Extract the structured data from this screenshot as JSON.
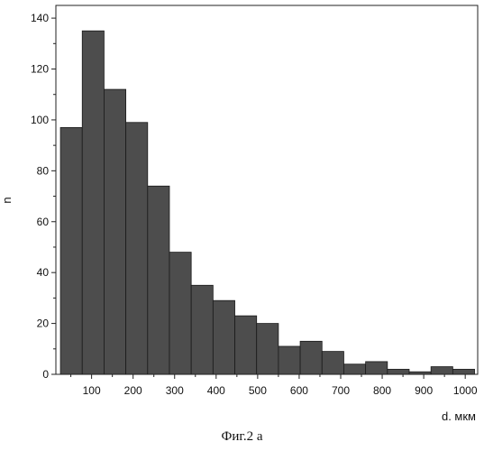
{
  "chart_data": {
    "type": "bar",
    "title": "",
    "xlabel": "d. мкм",
    "ylabel": "n",
    "xlim": [
      14,
      1030
    ],
    "ylim": [
      0,
      145
    ],
    "xticks": [
      100,
      200,
      300,
      400,
      500,
      600,
      700,
      800,
      900,
      1000
    ],
    "yticks": [
      0,
      20,
      40,
      60,
      80,
      100,
      120,
      140
    ],
    "bin_width": 52.5,
    "bins": [
      {
        "x0": 25,
        "x1": 77.5,
        "value": 97
      },
      {
        "x0": 77.5,
        "x1": 130,
        "value": 135
      },
      {
        "x0": 130,
        "x1": 182.5,
        "value": 112
      },
      {
        "x0": 182.5,
        "x1": 235,
        "value": 99
      },
      {
        "x0": 235,
        "x1": 287.5,
        "value": 74
      },
      {
        "x0": 287.5,
        "x1": 340,
        "value": 48
      },
      {
        "x0": 340,
        "x1": 392.5,
        "value": 35
      },
      {
        "x0": 392.5,
        "x1": 445,
        "value": 29
      },
      {
        "x0": 445,
        "x1": 497.5,
        "value": 23
      },
      {
        "x0": 497.5,
        "x1": 550,
        "value": 20
      },
      {
        "x0": 550,
        "x1": 602.5,
        "value": 11
      },
      {
        "x0": 602.5,
        "x1": 655,
        "value": 13
      },
      {
        "x0": 655,
        "x1": 707.5,
        "value": 9
      },
      {
        "x0": 707.5,
        "x1": 760,
        "value": 4
      },
      {
        "x0": 760,
        "x1": 812.5,
        "value": 5
      },
      {
        "x0": 812.5,
        "x1": 865,
        "value": 2
      },
      {
        "x0": 865,
        "x1": 917.5,
        "value": 1
      },
      {
        "x0": 917.5,
        "x1": 970,
        "value": 3
      },
      {
        "x0": 970,
        "x1": 1022.5,
        "value": 2
      }
    ],
    "grid": false,
    "legend": "none",
    "colors": {
      "bar_fill": "#4d4d4d",
      "bar_edge": "#1a1a1a",
      "axis": "#222222"
    }
  },
  "caption": "Фиг.2 а"
}
